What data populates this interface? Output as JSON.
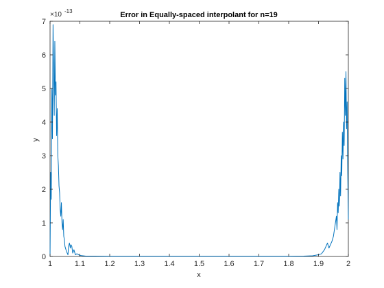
{
  "chart_data": {
    "type": "line",
    "title": "Error in Equally-spaced interpolant for n=19",
    "xlabel": "x",
    "ylabel": "y",
    "xlim": [
      1,
      2
    ],
    "ylim": [
      0,
      7e-13
    ],
    "y_exponent_label": "×10",
    "y_exponent_power": "-13",
    "x_ticks": [
      "1",
      "1.1",
      "1.2",
      "1.3",
      "1.4",
      "1.5",
      "1.6",
      "1.7",
      "1.8",
      "1.9",
      "2"
    ],
    "y_ticks": [
      "0",
      "1",
      "2",
      "3",
      "4",
      "5",
      "6",
      "7"
    ],
    "grid": false,
    "line_color": "#0072BD",
    "series": [
      {
        "x": [
          1.0,
          1.002,
          1.004,
          1.006,
          1.008,
          1.01,
          1.012,
          1.014,
          1.016,
          1.018,
          1.02,
          1.022,
          1.024,
          1.026,
          1.028,
          1.03,
          1.032,
          1.034,
          1.036,
          1.038,
          1.04,
          1.042,
          1.044,
          1.046,
          1.048,
          1.05,
          1.055,
          1.06,
          1.062,
          1.065,
          1.068,
          1.07,
          1.073,
          1.076,
          1.08,
          1.085,
          1.09,
          1.1,
          1.12,
          1.15,
          1.2,
          1.3,
          1.4,
          1.5,
          1.6,
          1.7,
          1.8,
          1.85,
          1.88,
          1.9,
          1.91,
          1.92,
          1.925,
          1.93,
          1.935,
          1.94,
          1.945,
          1.95,
          1.955,
          1.96,
          1.962,
          1.964,
          1.966,
          1.968,
          1.97,
          1.972,
          1.974,
          1.976,
          1.978,
          1.98,
          1.982,
          1.984,
          1.986,
          1.988,
          1.99,
          1.992,
          1.994,
          1.996,
          1.998,
          2.0
        ],
        "y": [
          0.0,
          2.5e-13,
          1.7e-13,
          5e-13,
          3.5e-13,
          6.9e-13,
          5.5e-13,
          4.2e-13,
          6.4e-13,
          4.8e-13,
          5.2e-13,
          3.6e-13,
          4.4e-13,
          3e-13,
          2.7e-13,
          2.1e-13,
          1.9e-13,
          1.4e-13,
          1.2e-13,
          1.6e-13,
          1e-13,
          8e-14,
          1.1e-13,
          6e-14,
          5e-14,
          3e-14,
          1.5e-14,
          5e-15,
          3e-14,
          4e-14,
          2.5e-14,
          3.5e-14,
          3e-14,
          1e-14,
          2e-14,
          5e-15,
          8e-15,
          3e-15,
          1e-15,
          1e-15,
          5e-16,
          5e-16,
          5e-16,
          5e-16,
          5e-16,
          5e-16,
          5e-16,
          1e-15,
          2e-15,
          5e-15,
          8e-15,
          2e-14,
          3e-14,
          4e-14,
          2.5e-14,
          3.5e-14,
          4.5e-14,
          6e-14,
          9e-14,
          1.2e-13,
          8e-14,
          1.6e-13,
          1.3e-13,
          2e-13,
          1.5e-13,
          2.5e-13,
          1.8e-13,
          3e-13,
          2.4e-13,
          3.7e-13,
          2.9e-13,
          4e-13,
          3.3e-13,
          5.3e-13,
          4.2e-13,
          5.5e-13,
          3.8e-13,
          4.6e-13,
          2.5e-13,
          1.1e-13
        ]
      }
    ]
  }
}
